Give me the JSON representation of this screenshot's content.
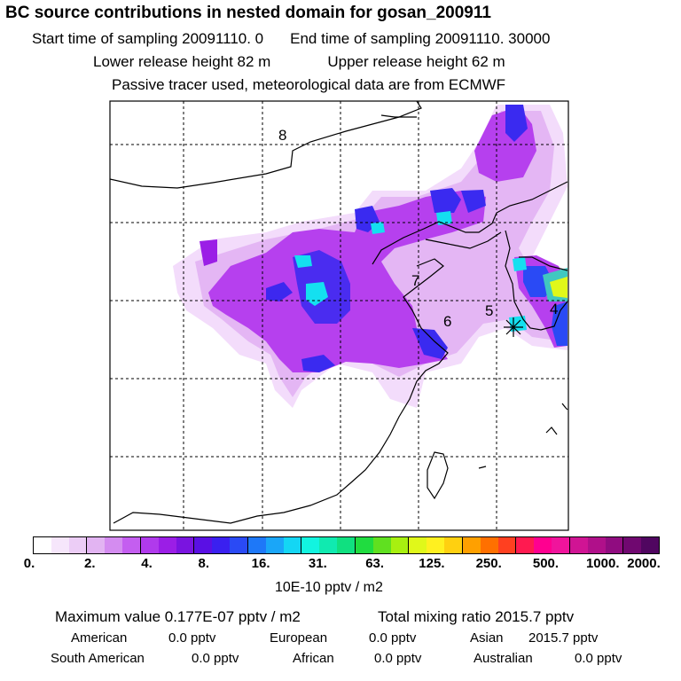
{
  "header": {
    "title": "BC  source contributions in nested domain for gosan_200911",
    "start_label": "Start time of sampling 20091110.     0",
    "end_label": "End time of sampling 20091110. 30000",
    "lower_label": "Lower release height   82 m",
    "upper_label": "Upper release height   62 m",
    "tracer_note": "Passive tracer used, meteorological data are from ECMWF"
  },
  "map": {
    "labels": [
      "8",
      "7",
      "6",
      "5",
      "4"
    ]
  },
  "colorbar": {
    "colors": [
      "#ffffff",
      "#f6e6fb",
      "#eccdf6",
      "#e2b4f2",
      "#d48cf0",
      "#c45ef0",
      "#b03aec",
      "#9b1ee6",
      "#7a14e0",
      "#5a10e4",
      "#3a20f0",
      "#2a4af5",
      "#1e78f8",
      "#1aa6f8",
      "#14d6f4",
      "#12f4e0",
      "#10eab0",
      "#10e080",
      "#20dc40",
      "#60e020",
      "#a8f010",
      "#e0f81a",
      "#fff020",
      "#ffd010",
      "#ffa000",
      "#ff7000",
      "#ff4020",
      "#ff1a50",
      "#ff0090",
      "#f0149c",
      "#d01494",
      "#b0108a",
      "#900c80",
      "#700870",
      "#500660"
    ],
    "ticks": [
      "0.",
      "2.",
      "4.",
      "8.",
      "16.",
      "31.",
      "63.",
      "125.",
      "250.",
      "500.",
      "1000.",
      "2000."
    ],
    "units": "10E-10 pptv / m2"
  },
  "summary": {
    "max_label": "Maximum value  0.177E-07 pptv / m2",
    "total_label": "Total mixing ratio     2015.7 pptv",
    "regions": [
      {
        "name": "American",
        "value": "0.0 pptv"
      },
      {
        "name": "European",
        "value": "0.0 pptv"
      },
      {
        "name": "Asian",
        "value": "2015.7 pptv"
      },
      {
        "name": "South American",
        "value": "0.0 pptv"
      },
      {
        "name": "African",
        "value": "0.0 pptv"
      },
      {
        "name": "Australian",
        "value": "0.0 pptv"
      }
    ]
  }
}
